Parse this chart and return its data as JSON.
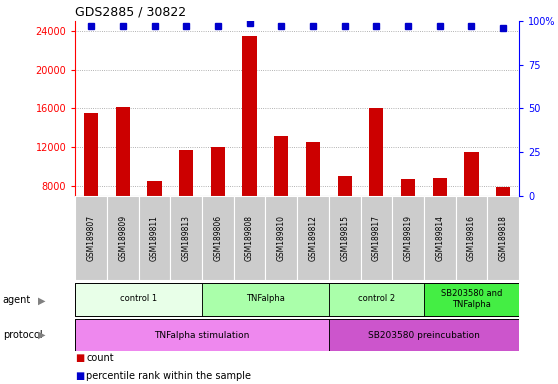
{
  "title": "GDS2885 / 30822",
  "samples": [
    "GSM189807",
    "GSM189809",
    "GSM189811",
    "GSM189813",
    "GSM189806",
    "GSM189808",
    "GSM189810",
    "GSM189812",
    "GSM189815",
    "GSM189817",
    "GSM189819",
    "GSM189814",
    "GSM189816",
    "GSM189818"
  ],
  "counts": [
    15500,
    16200,
    8500,
    11700,
    12000,
    23500,
    13200,
    12500,
    9000,
    16000,
    8700,
    8800,
    11500,
    7900
  ],
  "percentile_ranks": [
    97,
    97,
    97,
    97,
    97,
    99,
    97,
    97,
    97,
    97,
    97,
    97,
    97,
    96
  ],
  "bar_color": "#cc0000",
  "dot_color": "#0000cc",
  "ylim_left": [
    7000,
    25000
  ],
  "yticks_left": [
    8000,
    12000,
    16000,
    20000,
    24000
  ],
  "ylim_right": [
    0,
    100
  ],
  "yticks_right": [
    0,
    25,
    50,
    75,
    100
  ],
  "agent_groups": [
    {
      "label": "control 1",
      "start": 0,
      "end": 3,
      "color": "#e8ffe8"
    },
    {
      "label": "TNFalpha",
      "start": 4,
      "end": 7,
      "color": "#aaffaa"
    },
    {
      "label": "control 2",
      "start": 8,
      "end": 10,
      "color": "#aaffaa"
    },
    {
      "label": "SB203580 and\nTNFalpha",
      "start": 11,
      "end": 13,
      "color": "#44ee44"
    }
  ],
  "protocol_groups": [
    {
      "label": "TNFalpha stimulation",
      "start": 0,
      "end": 7,
      "color": "#ee88ee"
    },
    {
      "label": "SB203580 preincubation",
      "start": 8,
      "end": 13,
      "color": "#cc55cc"
    }
  ],
  "xticklabel_bg": "#cccccc",
  "grid_color": "#999999",
  "legend_count_color": "#cc0000",
  "legend_dot_color": "#0000cc"
}
